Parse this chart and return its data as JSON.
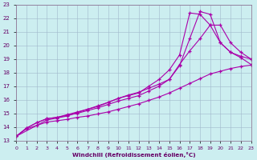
{
  "xlabel": "Windchill (Refroidissement éolien,°C)",
  "xlim": [
    0,
    23
  ],
  "ylim": [
    13,
    23
  ],
  "xticks": [
    0,
    1,
    2,
    3,
    4,
    5,
    6,
    7,
    8,
    9,
    10,
    11,
    12,
    13,
    14,
    15,
    16,
    17,
    18,
    19,
    20,
    21,
    22,
    23
  ],
  "yticks": [
    13,
    14,
    15,
    16,
    17,
    18,
    19,
    20,
    21,
    22,
    23
  ],
  "background_color": "#cceef0",
  "grid_color": "#a0b8cc",
  "line_color": "#aa00aa",
  "line1_x": [
    0,
    1,
    2,
    3,
    4,
    5,
    6,
    7,
    8,
    9,
    10,
    11,
    12,
    13,
    14,
    15,
    16,
    17,
    18,
    19,
    20,
    21,
    22,
    23
  ],
  "line1_y": [
    13.3,
    13.85,
    14.1,
    14.35,
    14.45,
    14.55,
    14.7,
    14.8,
    14.95,
    15.1,
    15.3,
    15.5,
    15.7,
    15.95,
    16.2,
    16.5,
    16.85,
    17.2,
    17.55,
    17.9,
    18.1,
    18.3,
    18.45,
    18.55
  ],
  "line2_x": [
    0,
    1,
    2,
    3,
    4,
    5,
    6,
    7,
    8,
    9,
    10,
    11,
    12,
    13,
    14,
    15,
    16,
    17,
    18,
    19,
    20,
    21,
    22,
    23
  ],
  "line2_y": [
    13.3,
    13.9,
    14.3,
    14.6,
    14.7,
    14.9,
    15.1,
    15.3,
    15.5,
    15.8,
    16.1,
    16.3,
    16.5,
    17.0,
    17.5,
    18.2,
    19.3,
    22.4,
    22.3,
    21.5,
    20.2,
    19.5,
    19.2,
    19.0
  ],
  "line3_x": [
    0,
    1,
    2,
    3,
    4,
    5,
    6,
    7,
    8,
    9,
    10,
    11,
    12,
    13,
    14,
    15,
    16,
    17,
    18,
    19,
    20,
    21,
    22,
    23
  ],
  "line3_y": [
    13.3,
    13.9,
    14.3,
    14.6,
    14.7,
    14.85,
    15.0,
    15.2,
    15.4,
    15.65,
    15.9,
    16.1,
    16.3,
    16.65,
    17.0,
    17.5,
    18.5,
    20.5,
    22.5,
    22.3,
    20.2,
    19.5,
    19.1,
    18.6
  ],
  "line4_x": [
    0,
    3,
    4,
    5,
    6,
    7,
    8,
    9,
    10,
    11,
    12,
    13,
    14,
    15,
    16,
    17,
    18,
    19,
    20,
    21,
    22,
    23
  ],
  "line4_y": [
    13.3,
    14.5,
    14.65,
    14.8,
    15.05,
    15.3,
    15.55,
    15.8,
    16.1,
    16.35,
    16.55,
    16.85,
    17.15,
    17.5,
    18.6,
    19.6,
    20.5,
    21.5,
    21.5,
    20.2,
    19.5,
    19.0
  ]
}
